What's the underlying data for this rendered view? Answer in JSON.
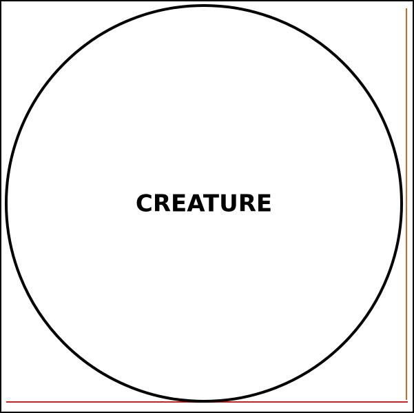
{
  "diagram": {
    "label": "CREATURE",
    "colors": {
      "background": "#ffffff",
      "outline": "#000000",
      "right_line": "#d2691e",
      "bottom_line": "#cc2222"
    }
  }
}
